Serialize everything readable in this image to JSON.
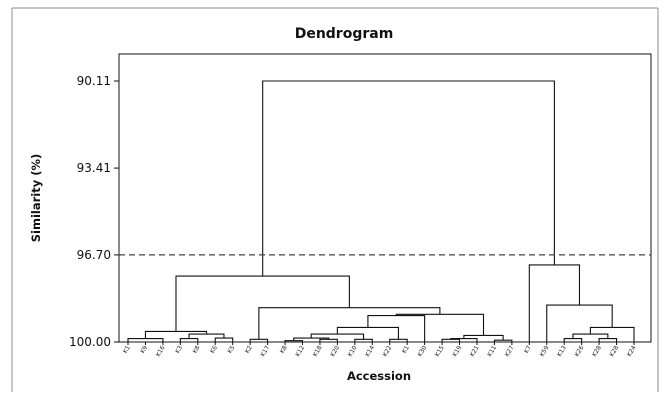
{
  "chart_data": {
    "type": "dendrogram",
    "title": "Dendrogram",
    "xlabel": "Accession",
    "ylabel": "Similarity (%)",
    "y_ticks": [
      "90.11",
      "93.41",
      "96.70",
      "100.00"
    ],
    "y_range": [
      100.0,
      90.11
    ],
    "cut_line_similarity": 96.7,
    "leaves": [
      "K1",
      "K9",
      "K16",
      "K3",
      "K8",
      "K6",
      "K5",
      "K2",
      "K17",
      "K8",
      "K12",
      "K18",
      "K20",
      "K10",
      "K14",
      "K22",
      "K1",
      "K30",
      "K15",
      "K19",
      "K21",
      "K11",
      "K27",
      "K7",
      "K59",
      "K13",
      "K26",
      "K28",
      "K28",
      "K24"
    ],
    "merges": [
      {
        "id": "n1",
        "a": 0,
        "b": 2,
        "h": 99.87
      },
      {
        "id": "n2",
        "a": 3,
        "b": 4,
        "h": 99.87
      },
      {
        "id": "n3",
        "a": 5,
        "b": 6,
        "h": 99.85
      },
      {
        "id": "n4",
        "a": "n2",
        "b": "n3",
        "h": 99.7
      },
      {
        "id": "n5",
        "a": "n1",
        "b": "n4",
        "h": 99.6
      },
      {
        "id": "n6",
        "a": 7,
        "b": 8,
        "h": 99.9
      },
      {
        "id": "n7",
        "a": 9,
        "b": 10,
        "h": 99.95
      },
      {
        "id": "n8",
        "a": 11,
        "b": 12,
        "h": 99.9
      },
      {
        "id": "n9",
        "a": "n7",
        "b": "n8",
        "h": 99.85
      },
      {
        "id": "n10",
        "a": 13,
        "b": 14,
        "h": 99.9
      },
      {
        "id": "n11",
        "a": "n9",
        "b": "n10",
        "h": 99.7
      },
      {
        "id": "n12",
        "a": 15,
        "b": 16,
        "h": 99.9
      },
      {
        "id": "n13",
        "a": "n11",
        "b": "n12",
        "h": 99.45
      },
      {
        "id": "n14",
        "a": "n13",
        "b": 17,
        "h": 99.0
      },
      {
        "id": "n15",
        "a": 18,
        "b": 19,
        "h": 99.9
      },
      {
        "id": "n16",
        "a": "n15",
        "b": 20,
        "h": 99.87
      },
      {
        "id": "n17",
        "a": 21,
        "b": 22,
        "h": 99.93
      },
      {
        "id": "n18",
        "a": "n16",
        "b": "n17",
        "h": 99.75
      },
      {
        "id": "n19",
        "a": "n14",
        "b": "n18",
        "h": 98.95
      },
      {
        "id": "n20",
        "a": "n6",
        "b": "n19",
        "h": 98.7
      },
      {
        "id": "n21",
        "a": "n5",
        "b": "n20",
        "h": 97.5
      },
      {
        "id": "n22",
        "a": 25,
        "b": 26,
        "h": 99.87
      },
      {
        "id": "n23",
        "a": 27,
        "b": 28,
        "h": 99.87
      },
      {
        "id": "n24",
        "a": "n22",
        "b": "n23",
        "h": 99.7
      },
      {
        "id": "n25",
        "a": "n24",
        "b": 29,
        "h": 99.45
      },
      {
        "id": "n26",
        "a": 24,
        "b": "n25",
        "h": 98.6
      },
      {
        "id": "n27",
        "a": 23,
        "b": "n26",
        "h": 97.08
      },
      {
        "id": "n28",
        "a": "n21",
        "b": "n27",
        "h": 90.11
      }
    ],
    "grid": false
  }
}
